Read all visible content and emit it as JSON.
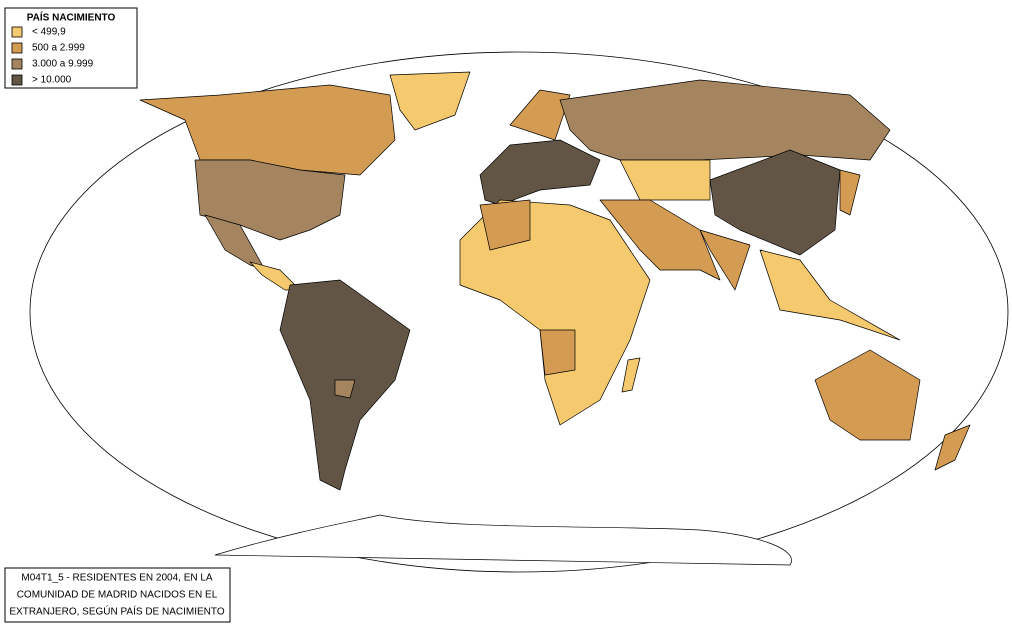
{
  "legend": {
    "title": "PAÍS NACIMIENTO",
    "items": [
      {
        "label": "< 499,9",
        "color": "#f5c96d"
      },
      {
        "label": "500 a 2.999",
        "color": "#d49b52"
      },
      {
        "label": "3.000 a 9.999",
        "color": "#a5855f"
      },
      {
        "label": "> 10.000",
        "color": "#625546"
      }
    ]
  },
  "caption": {
    "lines": [
      "M04T1_5 - RESIDENTES EN 2004, EN LA",
      "COMUNIDAD DE MADRID NACIDOS EN EL",
      "EXTRANJERO, SEGÚN PAÍS DE NACIMIENTO"
    ]
  }
}
